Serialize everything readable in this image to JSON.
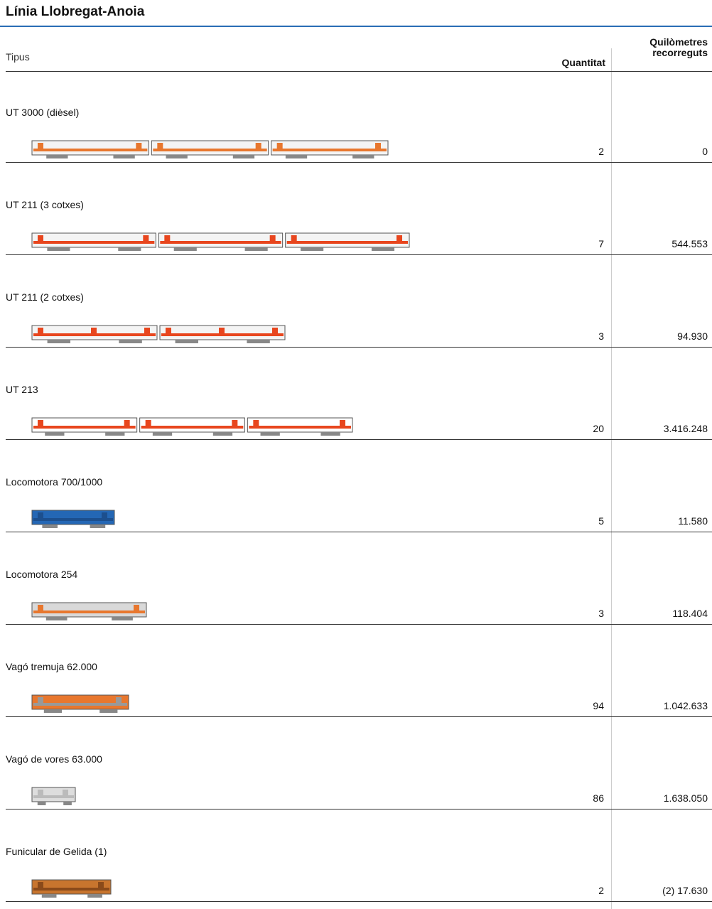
{
  "header": {
    "title": "Línia Llobregat-Anoia"
  },
  "table": {
    "columns": [
      "Tipus",
      "Quantitat",
      "Quilòmetres recorreguts"
    ],
    "rows": [
      [
        "UT 3000 (dièsel)",
        "2",
        "0"
      ],
      [
        "UT 211 (3 cotxes)",
        "7",
        "544.553"
      ],
      [
        "UT 211 (2 cotxes)",
        "3",
        "94.930"
      ],
      [
        "UT 213",
        "20",
        "3.416.248"
      ],
      [
        "Locomotora 700/1000",
        "5",
        "11.580"
      ],
      [
        "Locomotora 254",
        "3",
        "118.404"
      ],
      [
        "Vagó tremuja 62.000",
        "94",
        "1.042.633"
      ],
      [
        "Vagó de vores 63.000",
        "86",
        "1.638.050"
      ],
      [
        "Funicular de Gelida (1)",
        "2",
        "(2) 17.630"
      ]
    ]
  }
}
